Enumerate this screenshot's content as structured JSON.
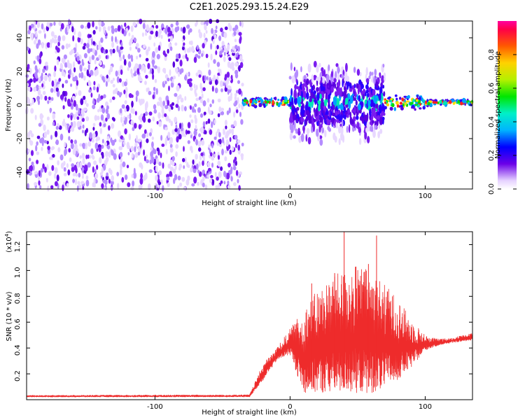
{
  "title": "C2E1.2025.293.15.24.E29",
  "colors": {
    "snr_line": "#ee2b2b",
    "spectrogram_dot": "#6a00e8",
    "axis": "#000000"
  },
  "chart_data": [
    {
      "type": "heatmap",
      "name": "spectrogram",
      "xlabel": "Height of straight line (km)",
      "ylabel": "Frequency (Hz)",
      "xlim": [
        -195,
        135
      ],
      "ylim": [
        -50,
        50
      ],
      "x_ticks": [
        -100,
        0,
        100
      ],
      "x_tick_labels": [
        "-100",
        "0",
        "100"
      ],
      "y_ticks": [
        -40,
        -20,
        0,
        20,
        40
      ],
      "y_tick_labels": [
        "-40",
        "-20",
        "0",
        "20",
        "40"
      ],
      "noise_region_km": [
        -195,
        -35
      ],
      "signal_center_hz": 1.5,
      "band_segments": [
        {
          "x_start_km": -35,
          "x_end_km": 0,
          "half_width_hz": 3
        },
        {
          "x_start_km": 0,
          "x_end_km": 70,
          "half_width_hz": 25
        },
        {
          "x_start_km": 70,
          "x_end_km": 100,
          "half_width_hz": 5
        },
        {
          "x_start_km": 100,
          "x_end_km": 135,
          "half_width_hz": 2
        }
      ],
      "colorbar": {
        "label": "Normalized spectral amplitude",
        "range": [
          0.0,
          1.0
        ],
        "ticks": [
          0.0,
          0.2,
          0.4,
          0.6,
          0.8
        ],
        "tick_labels": [
          "0.0",
          "0.2",
          "0.4",
          "0.6",
          "0.8"
        ]
      }
    },
    {
      "type": "line",
      "name": "snr",
      "xlabel": "Height of straight line (km)",
      "ylabel": "SNR (10 * v/v)",
      "scale_label": "(x10",
      "scale_exponent": "4",
      "scale_close": ")",
      "xlim": [
        -195,
        135
      ],
      "ylim": [
        0.0,
        1.3
      ],
      "x_ticks": [
        -100,
        0,
        100
      ],
      "x_tick_labels": [
        "-100",
        "0",
        "100"
      ],
      "y_ticks": [
        0.2,
        0.4,
        0.6,
        0.8,
        1.0,
        1.2
      ],
      "y_tick_labels": [
        "0.2",
        "0.4",
        "0.6",
        "0.8",
        "1.0",
        "1.2"
      ],
      "envelope": {
        "x": [
          -195,
          -30,
          -20,
          -10,
          0,
          10,
          20,
          30,
          40,
          50,
          60,
          70,
          80,
          90,
          100,
          110,
          120,
          135
        ],
        "base": [
          0.02,
          0.02,
          0.15,
          0.3,
          0.35,
          0.05,
          0.05,
          0.05,
          0.05,
          0.05,
          0.05,
          0.08,
          0.15,
          0.25,
          0.38,
          0.42,
          0.44,
          0.46
        ],
        "top": [
          0.035,
          0.04,
          0.28,
          0.4,
          0.55,
          0.7,
          0.85,
          0.95,
          1.0,
          1.05,
          1.0,
          0.9,
          0.78,
          0.62,
          0.5,
          0.47,
          0.48,
          0.52
        ]
      },
      "spikes": [
        {
          "x": 40,
          "y": 1.3
        },
        {
          "x": 64,
          "y": 1.27
        },
        {
          "x": 58,
          "y": 1.05
        },
        {
          "x": 16,
          "y": 0.9
        },
        {
          "x": 33,
          "y": 0.98
        }
      ]
    }
  ]
}
